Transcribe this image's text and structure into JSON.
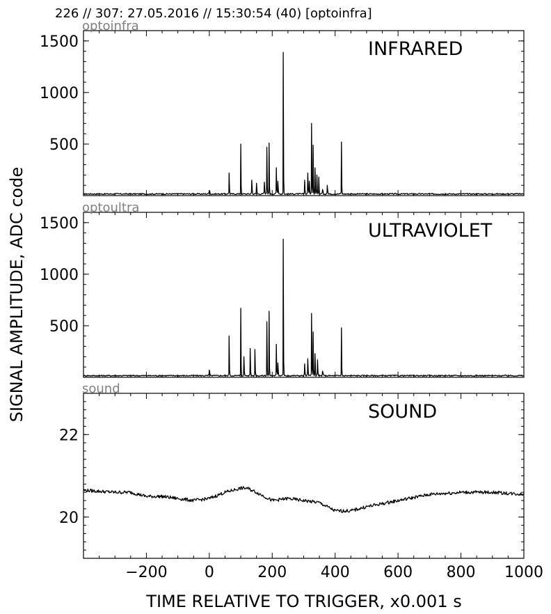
{
  "header": "226 // 307:   27.05.2016 // 15:30:54 (40)  [optoinfra]",
  "ylabel": "SIGNAL AMPLITUDE,  ADC code",
  "xlabel": "TIME RELATIVE TO TRIGGER,   x0.001 s",
  "chart_data": [
    {
      "type": "line",
      "name_label": "optoinfra",
      "title": "INFRARED",
      "xlim": [
        -400,
        1000
      ],
      "ylim": [
        0,
        1600
      ],
      "yticks": [
        500,
        1000,
        1500
      ],
      "xtick_labels_shown": false,
      "peaks": [
        {
          "x": 0,
          "y": 50
        },
        {
          "x": 63,
          "y": 220
        },
        {
          "x": 100,
          "y": 500
        },
        {
          "x": 135,
          "y": 150
        },
        {
          "x": 150,
          "y": 120
        },
        {
          "x": 175,
          "y": 130
        },
        {
          "x": 183,
          "y": 470
        },
        {
          "x": 190,
          "y": 510
        },
        {
          "x": 213,
          "y": 270
        },
        {
          "x": 218,
          "y": 140
        },
        {
          "x": 235,
          "y": 1390
        },
        {
          "x": 303,
          "y": 150
        },
        {
          "x": 313,
          "y": 220
        },
        {
          "x": 318,
          "y": 140
        },
        {
          "x": 325,
          "y": 700
        },
        {
          "x": 330,
          "y": 490
        },
        {
          "x": 336,
          "y": 270
        },
        {
          "x": 342,
          "y": 200
        },
        {
          "x": 348,
          "y": 180
        },
        {
          "x": 360,
          "y": 60
        },
        {
          "x": 375,
          "y": 100
        },
        {
          "x": 420,
          "y": 520
        }
      ],
      "baseline": 10
    },
    {
      "type": "line",
      "name_label": "optoultra",
      "title": "ULTRAVIOLET",
      "xlim": [
        -400,
        1000
      ],
      "ylim": [
        0,
        1600
      ],
      "yticks": [
        500,
        1000,
        1500
      ],
      "xtick_labels_shown": false,
      "peaks": [
        {
          "x": 0,
          "y": 70
        },
        {
          "x": 63,
          "y": 400
        },
        {
          "x": 100,
          "y": 670
        },
        {
          "x": 110,
          "y": 200
        },
        {
          "x": 130,
          "y": 280
        },
        {
          "x": 145,
          "y": 270
        },
        {
          "x": 183,
          "y": 540
        },
        {
          "x": 190,
          "y": 640
        },
        {
          "x": 213,
          "y": 320
        },
        {
          "x": 218,
          "y": 140
        },
        {
          "x": 235,
          "y": 1340
        },
        {
          "x": 303,
          "y": 130
        },
        {
          "x": 313,
          "y": 180
        },
        {
          "x": 325,
          "y": 620
        },
        {
          "x": 330,
          "y": 440
        },
        {
          "x": 336,
          "y": 230
        },
        {
          "x": 344,
          "y": 170
        },
        {
          "x": 360,
          "y": 60
        },
        {
          "x": 420,
          "y": 480
        }
      ],
      "baseline": 10
    },
    {
      "type": "line",
      "name_label": "sound",
      "title": "SOUND",
      "xlim": [
        -400,
        1000
      ],
      "ylim": [
        19,
        23
      ],
      "yticks": [
        20,
        22
      ],
      "xticks": [
        -200,
        0,
        200,
        400,
        600,
        800,
        1000
      ],
      "xtick_labels_shown": true,
      "x": [
        -400,
        -300,
        -250,
        -200,
        -150,
        -100,
        -50,
        0,
        50,
        100,
        120,
        150,
        200,
        250,
        300,
        350,
        400,
        450,
        500,
        600,
        700,
        800,
        900,
        1000
      ],
      "y": [
        20.65,
        20.6,
        20.6,
        20.5,
        20.5,
        20.45,
        20.4,
        20.45,
        20.6,
        20.7,
        20.7,
        20.6,
        20.4,
        20.45,
        20.4,
        20.35,
        20.15,
        20.15,
        20.25,
        20.4,
        20.55,
        20.6,
        20.6,
        20.55
      ]
    }
  ]
}
